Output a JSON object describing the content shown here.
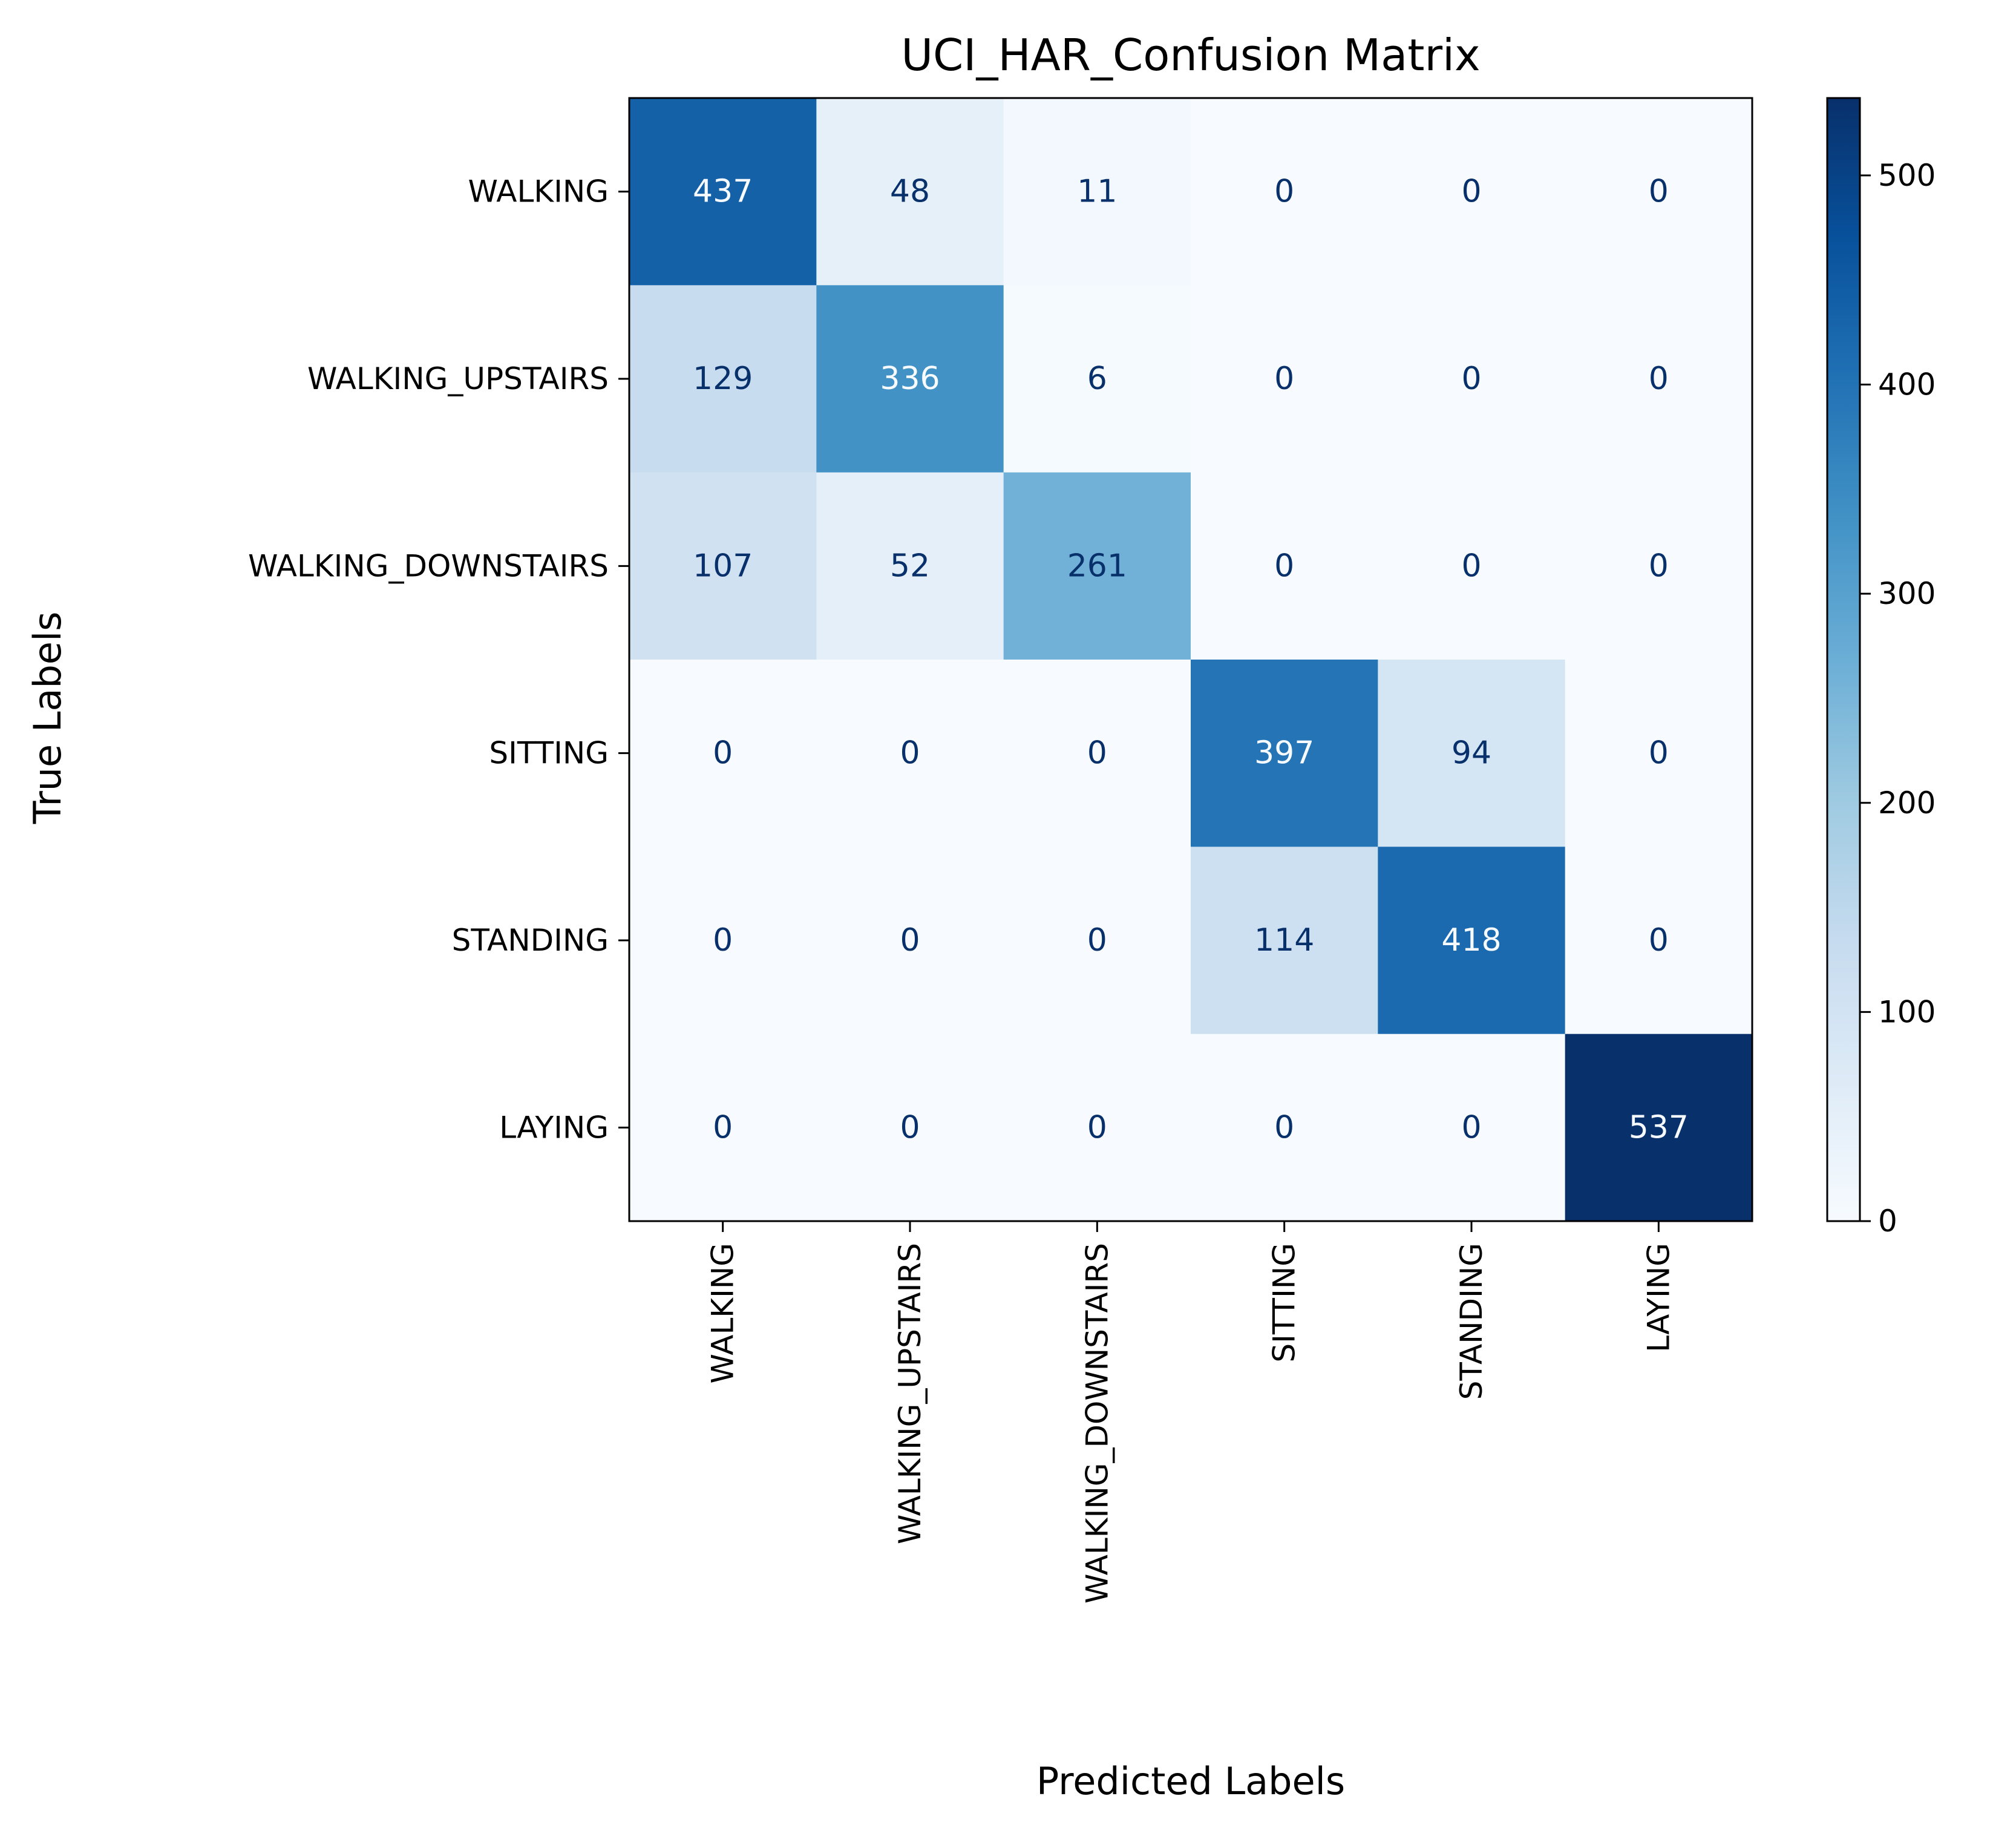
{
  "chart_data": {
    "type": "heatmap",
    "title": "UCI_HAR_Confusion Matrix",
    "xlabel": "Predicted Labels",
    "ylabel": "True Labels",
    "x_categories": [
      "WALKING",
      "WALKING_UPSTAIRS",
      "WALKING_DOWNSTAIRS",
      "SITTING",
      "STANDING",
      "LAYING"
    ],
    "y_categories": [
      "WALKING",
      "WALKING_UPSTAIRS",
      "WALKING_DOWNSTAIRS",
      "SITTING",
      "STANDING",
      "LAYING"
    ],
    "values": [
      [
        437,
        48,
        11,
        0,
        0,
        0
      ],
      [
        129,
        336,
        6,
        0,
        0,
        0
      ],
      [
        107,
        52,
        261,
        0,
        0,
        0
      ],
      [
        0,
        0,
        0,
        397,
        94,
        0
      ],
      [
        0,
        0,
        0,
        114,
        418,
        0
      ],
      [
        0,
        0,
        0,
        0,
        0,
        537
      ]
    ],
    "colormap": "Blues",
    "colorbar": {
      "range": [
        0,
        537
      ],
      "ticks": [
        0,
        100,
        200,
        300,
        400,
        500
      ]
    },
    "grid": false
  }
}
